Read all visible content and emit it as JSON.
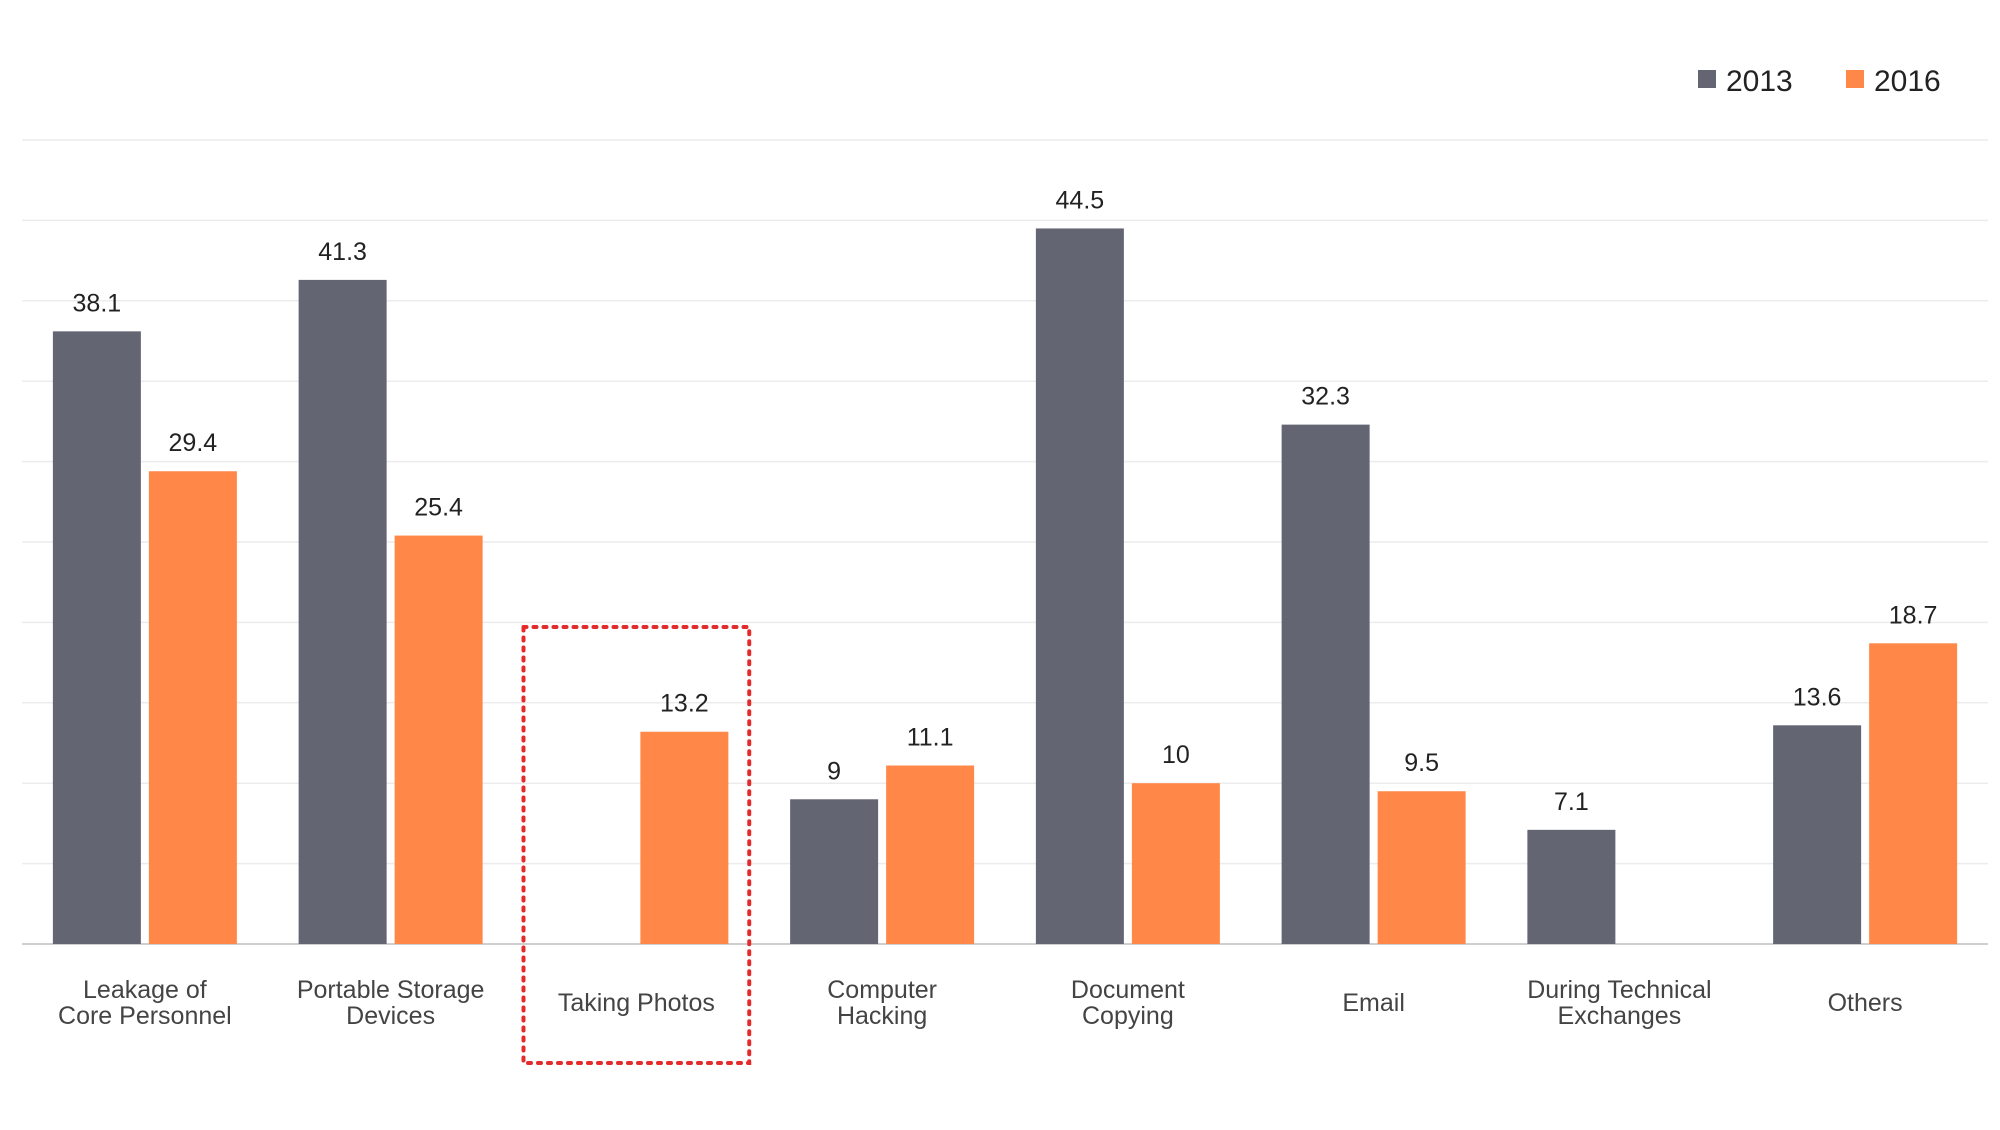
{
  "chart_data": {
    "type": "bar",
    "title": "",
    "xlabel": "",
    "ylabel": "",
    "ylim": [
      0,
      50
    ],
    "grid": true,
    "legend_position": "top-right",
    "categories": [
      [
        "Leakage of",
        "Core Personnel"
      ],
      [
        "Portable Storage",
        "Devices"
      ],
      [
        "Taking Photos"
      ],
      [
        "Computer",
        "Hacking"
      ],
      [
        "Document",
        "Copying"
      ],
      [
        "Email"
      ],
      [
        "During Technical",
        "Exchanges"
      ],
      [
        "Others"
      ]
    ],
    "series": [
      {
        "name": "2013",
        "color": "#636573",
        "values": [
          38.1,
          41.3,
          null,
          9,
          44.5,
          32.3,
          7.1,
          13.6
        ]
      },
      {
        "name": "2016",
        "color": "#FF8748",
        "values": [
          29.4,
          25.4,
          13.2,
          11.1,
          10,
          9.5,
          null,
          18.7
        ]
      }
    ],
    "highlight": {
      "category_index": 2,
      "style": "dotted",
      "color": "#E32B2B"
    }
  }
}
